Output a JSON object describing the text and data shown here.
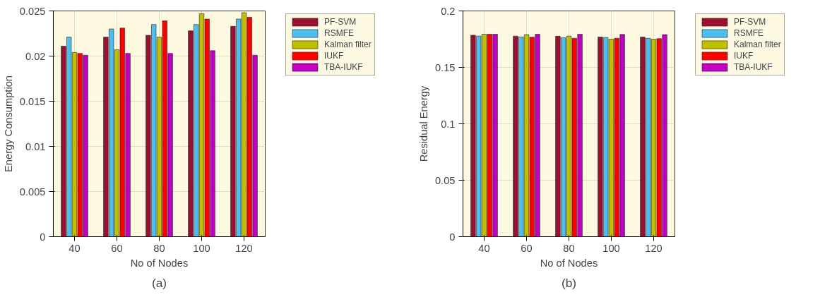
{
  "chart_data": [
    {
      "type": "bar",
      "xlabel": "No of Nodes",
      "ylabel": "Energy Consumption",
      "categories": [
        "40",
        "60",
        "80",
        "100",
        "120"
      ],
      "ylim": [
        0,
        0.025
      ],
      "yticks": [
        0,
        0.005,
        0.01,
        0.015,
        0.02,
        0.025
      ],
      "grid": true,
      "legend": "right",
      "annotations": [
        "(a)"
      ],
      "series": [
        {
          "name": "PF-SVM",
          "color": "#9b1030",
          "values": [
            0.0211,
            0.0221,
            0.0223,
            0.0228,
            0.0233
          ]
        },
        {
          "name": "RSMFE",
          "color": "#4dbeee",
          "values": [
            0.0221,
            0.023,
            0.0235,
            0.0235,
            0.0241
          ]
        },
        {
          "name": "Kalman filter",
          "color": "#bfbf00",
          "values": [
            0.0204,
            0.0207,
            0.0221,
            0.0247,
            0.0248
          ]
        },
        {
          "name": "IUKF",
          "color": "#ff0000",
          "values": [
            0.0203,
            0.0231,
            0.0239,
            0.0241,
            0.0243
          ]
        },
        {
          "name": "TBA-IUKF",
          "color": "#c000c0",
          "values": [
            0.0201,
            0.0203,
            0.0203,
            0.0206,
            0.0201
          ]
        }
      ]
    },
    {
      "type": "bar",
      "xlabel": "No of Nodes",
      "ylabel": "Residual Energy",
      "categories": [
        "40",
        "60",
        "80",
        "100",
        "120"
      ],
      "ylim": [
        0,
        0.2
      ],
      "yticks": [
        0,
        0.05,
        0.1,
        0.15,
        0.2
      ],
      "grid": true,
      "legend": "right",
      "annotations": [
        "(b)"
      ],
      "series": [
        {
          "name": "PF-SVM",
          "color": "#9b1030",
          "values": [
            0.1785,
            0.1777,
            0.1776,
            0.1769,
            0.1769
          ]
        },
        {
          "name": "RSMFE",
          "color": "#4dbeee",
          "values": [
            0.1777,
            0.1769,
            0.1763,
            0.1765,
            0.1758
          ]
        },
        {
          "name": "Kalman filter",
          "color": "#bfbf00",
          "values": [
            0.1794,
            0.179,
            0.1777,
            0.175,
            0.175
          ]
        },
        {
          "name": "IUKF",
          "color": "#ff0000",
          "values": [
            0.1794,
            0.1767,
            0.1758,
            0.1758,
            0.1755
          ]
        },
        {
          "name": "TBA-IUKF",
          "color": "#c000c0",
          "values": [
            0.1794,
            0.1794,
            0.1794,
            0.1792,
            0.179
          ]
        }
      ]
    }
  ]
}
